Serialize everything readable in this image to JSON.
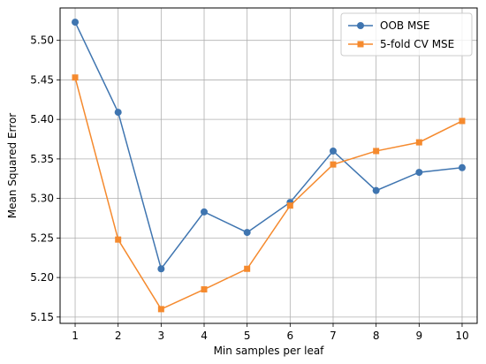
{
  "chart_data": {
    "type": "line",
    "title": "",
    "xlabel": "Min samples per leaf",
    "ylabel": "Mean Squared Error",
    "x": [
      1,
      2,
      3,
      4,
      5,
      6,
      7,
      8,
      9,
      10
    ],
    "xticks": [
      "1",
      "2",
      "3",
      "4",
      "5",
      "6",
      "7",
      "8",
      "9",
      "10"
    ],
    "yticks": [
      "5.15",
      "5.20",
      "5.25",
      "5.30",
      "5.35",
      "5.40",
      "5.45",
      "5.50"
    ],
    "xlim": [
      0.65,
      10.35
    ],
    "ylim": [
      5.142,
      5.541
    ],
    "grid": true,
    "legend_position": "top-right",
    "series": [
      {
        "name": "OOB MSE",
        "color": "#3f75b0",
        "marker": "circle",
        "values": [
          5.523,
          5.409,
          5.211,
          5.283,
          5.257,
          5.295,
          5.36,
          5.31,
          5.333,
          5.339
        ]
      },
      {
        "name": "5-fold CV MSE",
        "color": "#f58a2e",
        "marker": "square",
        "values": [
          5.453,
          5.248,
          5.16,
          5.185,
          5.211,
          5.291,
          5.343,
          5.36,
          5.371,
          5.398
        ]
      }
    ]
  }
}
